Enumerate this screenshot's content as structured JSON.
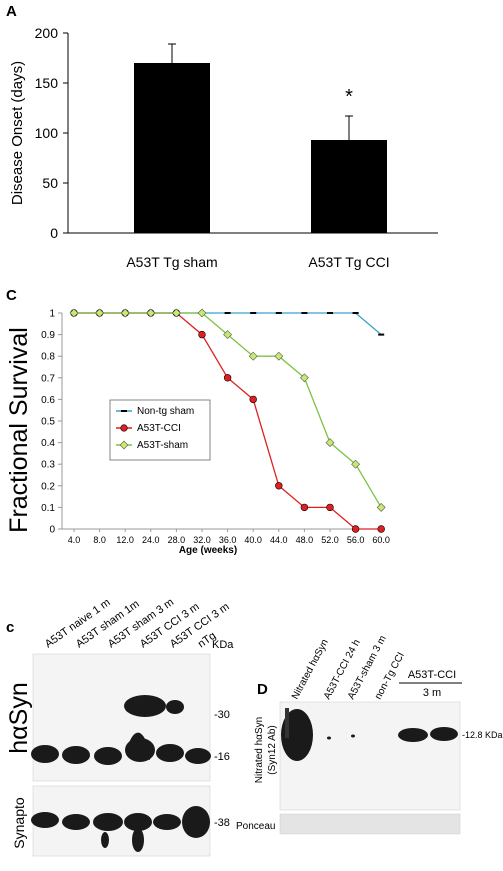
{
  "chart_data": [
    {
      "panel": "A",
      "type": "bar",
      "categories": [
        "A53T Tg sham",
        "A53T Tg CCI"
      ],
      "values": [
        170,
        93
      ],
      "errors": [
        19,
        24
      ],
      "ylabel": "Disease Onset (days)",
      "ylim": [
        0,
        200
      ],
      "yticks": [
        0,
        50,
        100,
        150,
        200
      ],
      "annotations": [
        "*"
      ],
      "bar_color": "#000000"
    },
    {
      "panel": "c",
      "type": "line",
      "ylabel": "Fractional Survival",
      "xlabel": "Age (weeks)",
      "x": [
        "4.0",
        "8.0",
        "12.0",
        "24.0",
        "28.0",
        "32.0",
        "36.0",
        "40.0",
        "44.0",
        "48.0",
        "52.0",
        "56.0",
        "60.0"
      ],
      "ylim": [
        0,
        1
      ],
      "yticks": [
        "0",
        "0.1",
        "0.2",
        "0.3",
        "0.4",
        "0.5",
        "0.6",
        "0.7",
        "0.8",
        "0.9",
        "1"
      ],
      "legend_position": "left",
      "series": [
        {
          "name": "Non-tg sham",
          "color": "#3a9fcf",
          "marker": "dash",
          "values": [
            1,
            1,
            1,
            1,
            1,
            1,
            1,
            1,
            1,
            1,
            1,
            1,
            0.9
          ]
        },
        {
          "name": "A53T-CCI",
          "color": "#e02020",
          "marker": "circle",
          "values": [
            1,
            1,
            1,
            1,
            1,
            0.9,
            0.7,
            0.6,
            0.2,
            0.1,
            0.1,
            0,
            0
          ]
        },
        {
          "name": "A53T-sham",
          "color": "#7cc243",
          "marker": "diamond",
          "values": [
            1,
            1,
            1,
            1,
            1,
            1,
            0.9,
            0.8,
            0.8,
            0.7,
            0.4,
            0.3,
            0.1
          ]
        }
      ]
    }
  ],
  "panel_labels": {
    "a": "A",
    "c1": "C",
    "c2": "c",
    "d": "D"
  },
  "blot_c": {
    "lanes": [
      "A53T naive 1 m",
      "A53T sham 1m",
      "A53T sham 3 m",
      "A53T CCI 3 m",
      "A53T CCI 3 m",
      "nTg"
    ],
    "row1_label": "hαSyn",
    "row2_label": "Synapto",
    "kda_header": "KDa",
    "markers": [
      "-30",
      "-16",
      "-38"
    ]
  },
  "blot_d": {
    "lanes": [
      "Nitrated hαSyn",
      "A53T-CCI 24 h",
      "A53T-sham 3 m",
      "non-Tg CCI"
    ],
    "group_label": "A53T-CCI",
    "group_sublabel": "3 m",
    "ylabel1": "Nitrated hαSyn",
    "ylabel2": "(Syn12 Ab)",
    "marker": "-12.8 KDa",
    "ponceau": "Ponceau"
  }
}
